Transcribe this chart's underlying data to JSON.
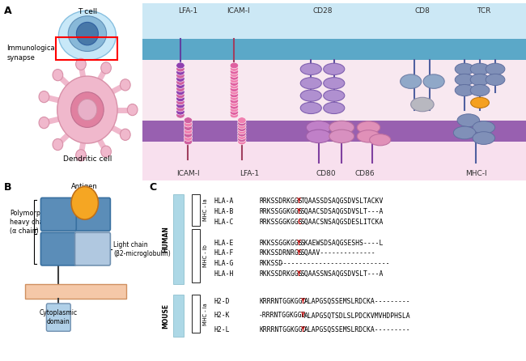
{
  "panel_label_fontsize": 9,
  "panel_label_weight": "bold",
  "background_color": "#ffffff",
  "seq_fontsize": 5.8,
  "label_fontsize": 7,
  "hla_names": [
    "HLA-A",
    "HLA-B",
    "HLA-C",
    "HLA-E",
    "HLA-F",
    "HLA-G",
    "HLA-H"
  ],
  "h2_names": [
    "H2-D",
    "H2-K",
    "H2-L"
  ],
  "hla_seqs": [
    [
      "RRKSS",
      "DRKGGS",
      "Y",
      "TQAASSDSAQGSDVSLTACKV"
    ],
    [
      "RRKS",
      "SGGKGGS",
      "Y",
      "SQAACSDSAQGSDVSLT---A"
    ],
    [
      "RRKS",
      "SGGKGGS",
      "C",
      "SQAACSNSAQGSDESLITCKA"
    ],
    [
      "RKKSS",
      "GGKGGS",
      "Y",
      "SKAEWSDSAQGSESHS----L"
    ],
    [
      "RKKSS",
      "DRNRGS",
      "Y",
      "SQAAV--------------"
    ],
    [
      "RKKSSD",
      "",
      "",
      "----------------------------"
    ],
    [
      "RKKSS",
      "DRKGGS",
      "Y",
      "SQAASSNSAQGSDVSLT---A"
    ]
  ],
  "h2_seqs": [
    [
      "KRRRNTGGKGGD",
      "Y",
      "ALAPGSQSSEMSLRDCKA---------"
    ],
    [
      "-RRRNTGGKGGD",
      "Y",
      "ALAPGSQTSDLSLPDCKVMVHDPHSLA"
    ],
    [
      "KRRRNTGGKGGD",
      "Y",
      "ALAPGSQSSEMSLRDCKA---------"
    ]
  ],
  "cyan_bar_color": "#add8e6",
  "blue_box_color": "#5b8db8",
  "light_blue_box": "#b0c8e0",
  "orange_color": "#f5a623",
  "membrane_salmon": "#f5c8a8",
  "purple_membrane": "#8060a8",
  "red_highlight": "#cc0000",
  "t_cell_outer": "#c8e8f8",
  "t_cell_mid": "#88b8d8",
  "t_cell_inner": "#4878a8",
  "dc_outer": "#f0b8cc",
  "dc_mid": "#e080a0",
  "tcell_membrane_color": "#5ba8c8",
  "dc_membrane_color": "#9860b0",
  "synapse_bg": "#f8e8f0",
  "tcell_bg": "#cce8f5",
  "dc_bg": "#f8e0ee"
}
